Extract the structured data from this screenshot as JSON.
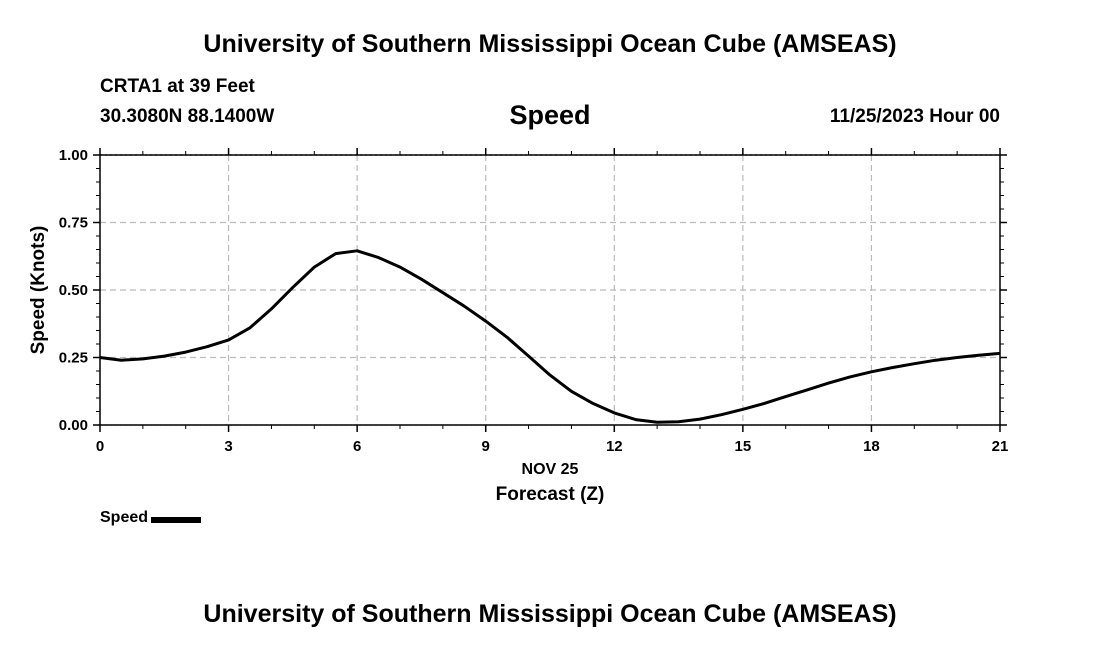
{
  "header": {
    "title": "University of Southern Mississippi Ocean Cube (AMSEAS)",
    "station": "CRTA1 at 39 Feet",
    "coords": "30.3080N  88.1400W",
    "variable": "Speed",
    "datetime": "11/25/2023 Hour 00"
  },
  "footer": {
    "title": "University of Southern Mississippi Ocean Cube (AMSEAS)"
  },
  "legend": {
    "label": "Speed"
  },
  "chart_data": {
    "type": "line",
    "title": "Speed",
    "xlabel": "Forecast (Z)",
    "xsublabel": "NOV 25",
    "ylabel": "Speed (Knots)",
    "xlim": [
      0,
      21
    ],
    "ylim": [
      0,
      1
    ],
    "xticks": [
      0,
      3,
      6,
      9,
      12,
      15,
      18,
      21
    ],
    "xtick_labels": [
      "0",
      "3",
      "6",
      "9",
      "12",
      "15",
      "18",
      "21"
    ],
    "yticks": [
      0,
      0.25,
      0.5,
      0.75,
      1.0
    ],
    "ytick_labels": [
      "0.00",
      "0.25",
      "0.50",
      "0.75",
      "1.00"
    ],
    "grid": true,
    "line_color": "#000000",
    "series": [
      {
        "name": "Speed",
        "x": [
          0,
          0.5,
          1,
          1.5,
          2,
          2.5,
          3,
          3.5,
          4,
          4.5,
          5,
          5.5,
          6,
          6.5,
          7,
          7.5,
          8,
          8.5,
          9,
          9.5,
          10,
          10.5,
          11,
          11.5,
          12,
          12.5,
          13,
          13.5,
          14,
          14.5,
          15,
          15.5,
          16,
          16.5,
          17,
          17.5,
          18,
          18.5,
          19,
          19.5,
          20,
          20.5,
          21
        ],
        "values": [
          0.25,
          0.24,
          0.245,
          0.255,
          0.27,
          0.29,
          0.315,
          0.36,
          0.43,
          0.51,
          0.585,
          0.635,
          0.645,
          0.62,
          0.585,
          0.54,
          0.49,
          0.44,
          0.385,
          0.325,
          0.255,
          0.185,
          0.125,
          0.08,
          0.045,
          0.02,
          0.01,
          0.012,
          0.022,
          0.038,
          0.058,
          0.08,
          0.105,
          0.13,
          0.155,
          0.178,
          0.197,
          0.213,
          0.227,
          0.24,
          0.25,
          0.258,
          0.265
        ]
      }
    ]
  }
}
